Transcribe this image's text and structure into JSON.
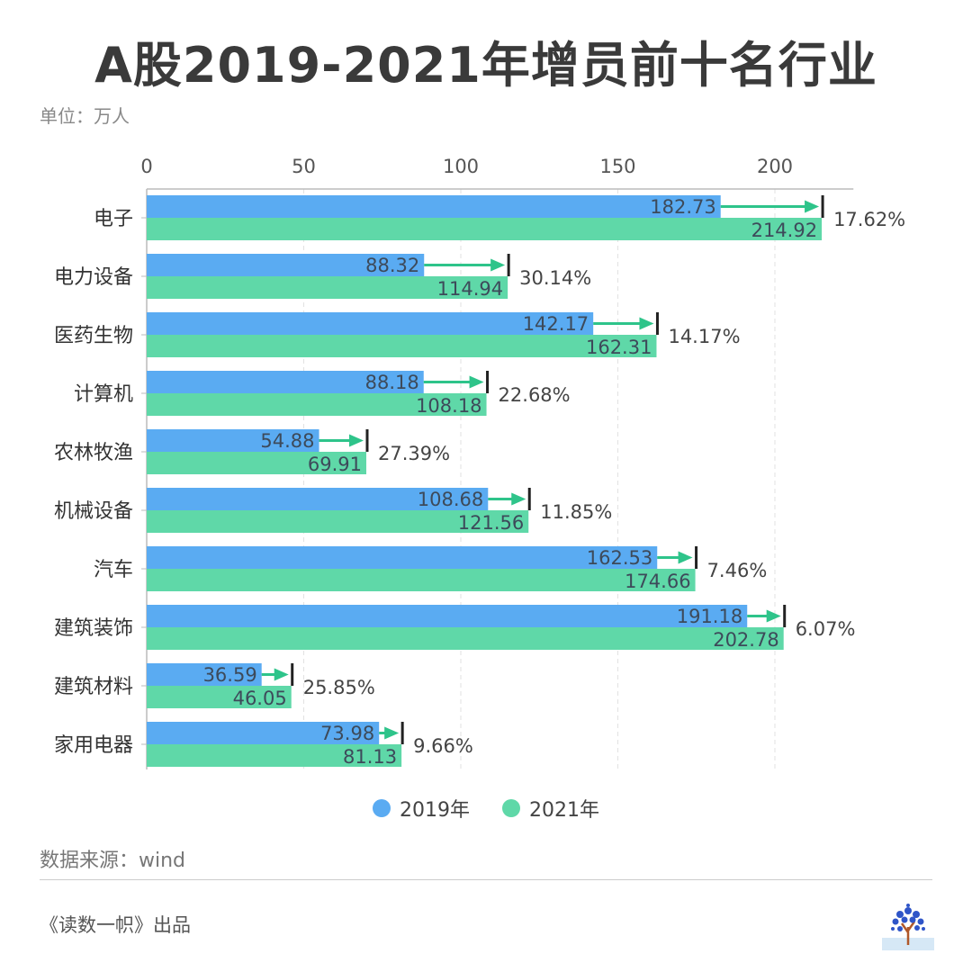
{
  "chart_data": {
    "type": "bar",
    "orientation": "horizontal",
    "title": "A股2019-2021年增员前十名行业",
    "unit_label": "单位：万人",
    "categories": [
      "电子",
      "电力设备",
      "医药生物",
      "计算机",
      "农林牧渔",
      "机械设备",
      "汽车",
      "建筑装饰",
      "建筑材料",
      "家用电器"
    ],
    "series": [
      {
        "name": "2019年",
        "color": "#5aabf2",
        "values": [
          182.73,
          88.32,
          142.17,
          88.18,
          54.88,
          108.68,
          162.53,
          191.18,
          36.59,
          73.98
        ]
      },
      {
        "name": "2021年",
        "color": "#5fd8a8",
        "values": [
          214.92,
          114.94,
          162.31,
          108.18,
          69.91,
          121.56,
          174.66,
          202.78,
          46.05,
          81.13
        ]
      }
    ],
    "growth_labels": [
      "17.62%",
      "30.14%",
      "14.17%",
      "22.68%",
      "27.39%",
      "11.85%",
      "7.46%",
      "6.07%",
      "25.85%",
      "9.66%"
    ],
    "arrow_color": "#2ec48a",
    "x_ticks": [
      "0",
      "50",
      "100",
      "150",
      "200"
    ],
    "xlim": [
      0,
      225
    ],
    "grid": true,
    "legend_position": "bottom"
  },
  "footer": {
    "source": "数据来源：wind",
    "credit": "《读数一帜》出品"
  }
}
